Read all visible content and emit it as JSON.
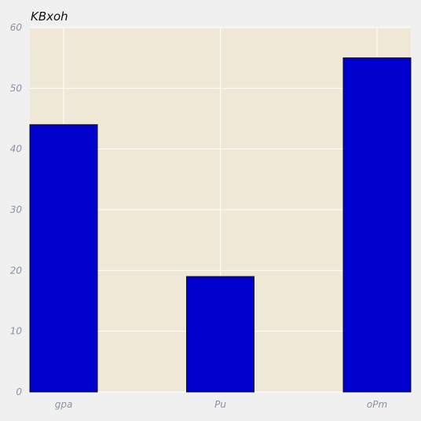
{
  "chart_data": {
    "type": "bar",
    "title": "KBxoh",
    "categories": [
      "gpa",
      "Pu",
      "oPm"
    ],
    "values": [
      44,
      19,
      55
    ],
    "xlabel": "",
    "ylabel": "",
    "ylim": [
      0,
      60
    ],
    "yticks": [
      "0",
      "10",
      "20",
      "30",
      "40",
      "50",
      "60"
    ],
    "grid": true,
    "legend": "none",
    "colors": {
      "plot_background": "#efe8d6",
      "page_background": "#f0f0f0",
      "bar_fill": "#0000cc",
      "bar_edge": "#111111",
      "grid": "#ffffff"
    }
  }
}
